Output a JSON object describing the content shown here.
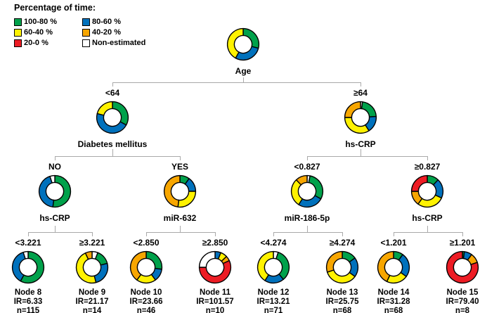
{
  "legend": {
    "title": "Percentage of time:",
    "items": [
      {
        "label": "100-80 %",
        "color_key": "green"
      },
      {
        "label": "80-60 %",
        "color_key": "blue"
      },
      {
        "label": "60-40 %",
        "color_key": "yellow"
      },
      {
        "label": "40-20 %",
        "color_key": "orange"
      },
      {
        "label": "20-0 %",
        "color_key": "red"
      },
      {
        "label": "Non-estimated",
        "color_key": "white"
      }
    ]
  },
  "colors": {
    "green": "#00A14B",
    "blue": "#0071BC",
    "yellow": "#FFF200",
    "orange": "#F7A600",
    "red": "#ED1C24",
    "white": "#FFFFFF"
  },
  "tree": {
    "root": {
      "label": "Age",
      "segments": [
        {
          "color": "green",
          "pct": 29
        },
        {
          "color": "blue",
          "pct": 29
        },
        {
          "color": "yellow",
          "pct": 42
        }
      ]
    },
    "level2": [
      {
        "branch_label": "<64",
        "label": "Diabetes mellitus",
        "segments": [
          {
            "color": "green",
            "pct": 33
          },
          {
            "color": "blue",
            "pct": 46
          },
          {
            "color": "yellow",
            "pct": 21
          }
        ]
      },
      {
        "branch_label": "≥64",
        "label": "hs-CRP",
        "segments": [
          {
            "color": "white",
            "pct": 2
          },
          {
            "color": "green",
            "pct": 22
          },
          {
            "color": "blue",
            "pct": 17
          },
          {
            "color": "yellow",
            "pct": 34
          },
          {
            "color": "orange",
            "pct": 25
          }
        ]
      }
    ],
    "level3": [
      {
        "branch_label": "NO",
        "label": "hs-CRP",
        "segments": [
          {
            "color": "green",
            "pct": 52
          },
          {
            "color": "blue",
            "pct": 43
          },
          {
            "color": "white",
            "pct": 5
          }
        ]
      },
      {
        "branch_label": "YES",
        "label": "miR-632",
        "segments": [
          {
            "color": "green",
            "pct": 10
          },
          {
            "color": "blue",
            "pct": 15
          },
          {
            "color": "yellow",
            "pct": 27
          },
          {
            "color": "orange",
            "pct": 48
          }
        ]
      },
      {
        "branch_label": "<0.827",
        "label": "miR-186-5p",
        "segments": [
          {
            "color": "white",
            "pct": 3
          },
          {
            "color": "green",
            "pct": 30
          },
          {
            "color": "blue",
            "pct": 26
          },
          {
            "color": "yellow",
            "pct": 29
          },
          {
            "color": "orange",
            "pct": 12
          }
        ]
      },
      {
        "branch_label": "≥0.827",
        "label": "hs-CRP",
        "segments": [
          {
            "color": "green",
            "pct": 12
          },
          {
            "color": "blue",
            "pct": 20
          },
          {
            "color": "yellow",
            "pct": 28
          },
          {
            "color": "orange",
            "pct": 15
          },
          {
            "color": "red",
            "pct": 25
          }
        ]
      }
    ],
    "leaves": [
      {
        "branch_label": "<3.221",
        "name": "Node 8",
        "ir": "IR=6.33",
        "n": "n=115",
        "segments": [
          {
            "color": "green",
            "pct": 58
          },
          {
            "color": "blue",
            "pct": 37
          },
          {
            "color": "white",
            "pct": 5
          }
        ]
      },
      {
        "branch_label": "≥3.221",
        "name": "Node 9",
        "ir": "IR=21.17",
        "n": "n=14",
        "segments": [
          {
            "color": "white",
            "pct": 6
          },
          {
            "color": "green",
            "pct": 15
          },
          {
            "color": "blue",
            "pct": 25
          },
          {
            "color": "yellow",
            "pct": 47
          },
          {
            "color": "orange",
            "pct": 7
          }
        ]
      },
      {
        "branch_label": "<2.850",
        "name": "Node 10",
        "ir": "IR=23.66",
        "n": "n=46",
        "segments": [
          {
            "color": "green",
            "pct": 27
          },
          {
            "color": "blue",
            "pct": 13
          },
          {
            "color": "yellow",
            "pct": 20
          },
          {
            "color": "orange",
            "pct": 40
          }
        ]
      },
      {
        "branch_label": "≥2.850",
        "name": "Node 11",
        "ir": "IR=101.57",
        "n": "n=10",
        "segments": [
          {
            "color": "blue",
            "pct": 6
          },
          {
            "color": "yellow",
            "pct": 7
          },
          {
            "color": "orange",
            "pct": 5
          },
          {
            "color": "red",
            "pct": 57
          },
          {
            "color": "white",
            "pct": 25
          }
        ]
      },
      {
        "branch_label": "<4.274",
        "name": "Node 12",
        "ir": "IR=13.21",
        "n": "n=71",
        "segments": [
          {
            "color": "white",
            "pct": 5
          },
          {
            "color": "green",
            "pct": 34
          },
          {
            "color": "blue",
            "pct": 20
          },
          {
            "color": "yellow",
            "pct": 41
          }
        ]
      },
      {
        "branch_label": "≥4.274",
        "name": "Node 13",
        "ir": "IR=25.75",
        "n": "n=68",
        "segments": [
          {
            "color": "green",
            "pct": 15
          },
          {
            "color": "blue",
            "pct": 20
          },
          {
            "color": "yellow",
            "pct": 35
          },
          {
            "color": "orange",
            "pct": 30
          }
        ]
      },
      {
        "branch_label": "<1.201",
        "name": "Node 14",
        "ir": "IR=31.28",
        "n": "n=68",
        "segments": [
          {
            "color": "green",
            "pct": 10
          },
          {
            "color": "blue",
            "pct": 25
          },
          {
            "color": "yellow",
            "pct": 22
          },
          {
            "color": "orange",
            "pct": 43
          }
        ]
      },
      {
        "branch_label": "≥1.201",
        "name": "Node 15",
        "ir": "IR=79.40",
        "n": "n=8",
        "segments": [
          {
            "color": "green",
            "pct": 2
          },
          {
            "color": "blue",
            "pct": 8
          },
          {
            "color": "orange",
            "pct": 10
          },
          {
            "color": "red",
            "pct": 80
          }
        ]
      }
    ]
  }
}
